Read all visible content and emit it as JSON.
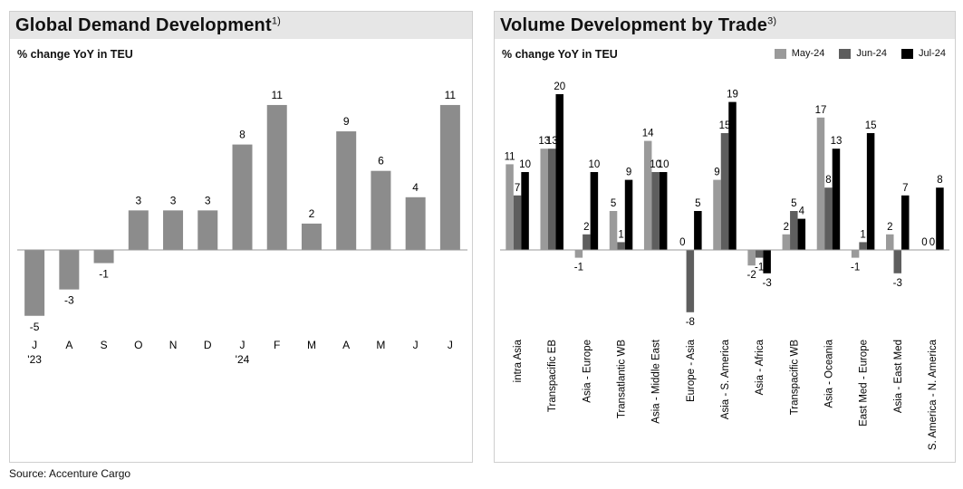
{
  "source": "Source: Accenture Cargo",
  "left": {
    "title": "Global Demand Development",
    "title_sup": "1)",
    "subtitle": "% change YoY in TEU",
    "chart_data": {
      "type": "bar",
      "title": "Global Demand Development",
      "ylabel": "% change YoY in TEU",
      "categories": [
        "J",
        "A",
        "S",
        "O",
        "N",
        "D",
        "J",
        "F",
        "M",
        "A",
        "M",
        "J",
        "J"
      ],
      "year_labels": [
        {
          "index": 0,
          "label": "'23"
        },
        {
          "index": 6,
          "label": "'24"
        }
      ],
      "values": [
        -5,
        -3,
        -1,
        3,
        3,
        3,
        8,
        11,
        2,
        9,
        6,
        4,
        11
      ],
      "ylim": [
        -7,
        12
      ],
      "colors": {
        "bar": "#8c8c8c"
      }
    }
  },
  "right": {
    "title": "Volume Development by Trade",
    "title_sup": "3)",
    "subtitle": "% change YoY in TEU",
    "chart_data": {
      "type": "bar",
      "title": "Volume Development by Trade",
      "ylabel": "% change YoY in TEU",
      "legend": "top-right",
      "categories": [
        "intra Asia",
        "Transpacific EB",
        "Asia - Europe",
        "Transatlantic WB",
        "Asia - Middle East",
        "Europe - Asia",
        "Asia - S. America",
        "Asia - Africa",
        "Transpacific WB",
        "Asia - Oceania",
        "East Med - Europe",
        "Asia - East Med",
        "S. America - N. America"
      ],
      "series": [
        {
          "name": "May-24",
          "color": "#9a9a9a",
          "values": [
            11,
            13,
            -1,
            5,
            14,
            0,
            9,
            -2,
            2,
            17,
            -1,
            2,
            0
          ]
        },
        {
          "name": "Jun-24",
          "color": "#5e5e5e",
          "values": [
            7,
            13,
            2,
            1,
            10,
            -8,
            15,
            -1,
            5,
            8,
            1,
            -3,
            0
          ]
        },
        {
          "name": "Jul-24",
          "color": "#000000",
          "values": [
            10,
            20,
            10,
            9,
            10,
            5,
            19,
            -3,
            4,
            13,
            15,
            7,
            8
          ]
        }
      ],
      "ylim": [
        -9,
        21
      ]
    }
  }
}
